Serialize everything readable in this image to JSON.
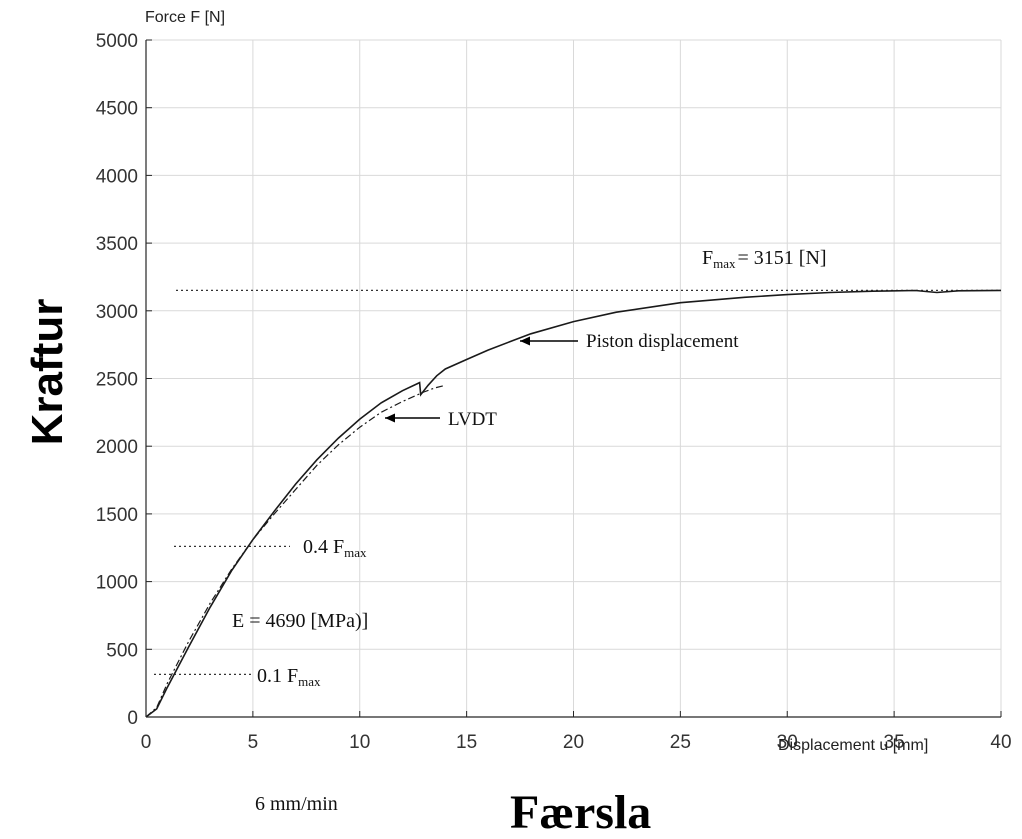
{
  "chart_data": {
    "type": "line",
    "y_axis_label": "Force F [N]",
    "x_axis_label": "Displacement u [mm]",
    "ylabel_big": "Kraftur",
    "xlabel_big": "Færsla",
    "rate_note": "6 mm/min",
    "xlim": [
      0,
      40
    ],
    "ylim": [
      0,
      5000
    ],
    "x_ticks": [
      0,
      5,
      10,
      15,
      20,
      25,
      30,
      35,
      40
    ],
    "y_ticks": [
      0,
      500,
      1000,
      1500,
      2000,
      2500,
      3000,
      3500,
      4000,
      4500,
      5000
    ],
    "grid": true,
    "series": [
      {
        "name": "Piston displacement",
        "style": "solid",
        "x": [
          0,
          0.5,
          1,
          2,
          3,
          4,
          5,
          6,
          7,
          8,
          9,
          10,
          11,
          12,
          12.8,
          12.85,
          13.2,
          13.6,
          14,
          15,
          16,
          17,
          18,
          20,
          22,
          25,
          28,
          30,
          32,
          34,
          36,
          37,
          38,
          40
        ],
        "y": [
          0,
          60,
          220,
          520,
          810,
          1080,
          1310,
          1520,
          1720,
          1900,
          2060,
          2200,
          2320,
          2410,
          2470,
          2380,
          2450,
          2520,
          2570,
          2640,
          2710,
          2770,
          2830,
          2920,
          2990,
          3060,
          3100,
          3120,
          3135,
          3145,
          3150,
          3135,
          3148,
          3151
        ]
      },
      {
        "name": "LVDT",
        "style": "dash-dot",
        "x": [
          0,
          0.5,
          1,
          2,
          3,
          4,
          5,
          6,
          7,
          8,
          9,
          10,
          11,
          12,
          13,
          13.5,
          14
        ],
        "y": [
          0,
          70,
          250,
          560,
          840,
          1090,
          1310,
          1500,
          1680,
          1860,
          2010,
          2140,
          2250,
          2330,
          2400,
          2430,
          2450
        ]
      }
    ],
    "reference_lines": {
      "fmax_value": 3151,
      "fmax_04": 1260,
      "fmax_01": 315
    },
    "annotations": {
      "fmax_prefix": "F",
      "fmax_sub": "max",
      "fmax_text": "= 3151 [N]",
      "piston_label": "Piston displacement",
      "lvdt_label": "LVDT",
      "point4_prefix": "0.4 F",
      "point4_sub": "max",
      "point1_prefix": "0.1 F",
      "point1_sub": "max",
      "modulus_text": "E = 4690 [MPa)]"
    },
    "colors": {
      "series": "#1a1a1a",
      "grid": "#d9d9d9",
      "axis": "#262626"
    }
  }
}
